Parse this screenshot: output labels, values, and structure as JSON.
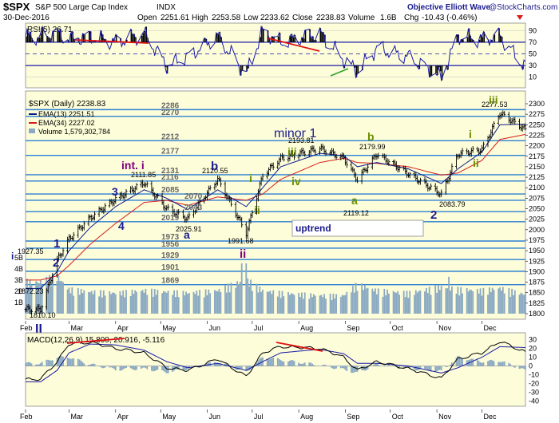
{
  "header": {
    "symbol": "$SPX",
    "name": "S&P 500 Large Cap Index",
    "exchange": "INDX",
    "date": "30-Dec-2016",
    "open_label": "Open",
    "open": "2251.61",
    "high_label": "High",
    "high": "2253.58",
    "low_label": "Low",
    "low": "2233.62",
    "close_label": "Close",
    "close": "2238.83",
    "volume_label": "Volume",
    "volume": "1.6B",
    "chg_label": "Chg",
    "chg": "-10.43 (-0.46%)",
    "watermark": "Objective Elliott Wave",
    "copyright": "@StockCharts.com"
  },
  "colors": {
    "panel_bg": "#fdfdd9",
    "price": "#000000",
    "ema13": "#0a1a8c",
    "ema34": "#d81b1b",
    "volume": "#8aa9c2",
    "hline": "#2b7fd4",
    "rsi": "#1a1aa8",
    "macd": "#000000",
    "signal": "#1a1aa8",
    "trendline": "#e01010",
    "label_blue": "#1a1a8c",
    "label_green": "#6b8e00",
    "label_purple": "#800080",
    "label_gray": "#666666"
  },
  "months": [
    "Feb",
    "Mar",
    "Apr",
    "May",
    "Jun",
    "Jul",
    "Aug",
    "Sep",
    "Oct",
    "Nov",
    "Dec"
  ],
  "rsi": {
    "label": "RSI(5) 26.71",
    "ticks": [
      "90",
      "70",
      "50",
      "30",
      "10"
    ]
  },
  "price_panel": {
    "legend_title": "$SPX (Daily) 2238.83",
    "ema13_label": "EMA(13) 2251.51",
    "ema34_label": "EMA(34) 2227.02",
    "volume_label": "Volume 1,579,302,784",
    "right_ticks": [
      "2300",
      "2275",
      "2250",
      "2225",
      "2200",
      "2175",
      "2150",
      "2125",
      "2100",
      "2075",
      "2050",
      "2025",
      "2000",
      "1975",
      "1950",
      "1925",
      "1900",
      "1875",
      "1850",
      "1825",
      "1800"
    ],
    "volume_ticks": [
      "5B",
      "4B",
      "3B",
      "2B",
      "1B"
    ],
    "chart_levels": [
      "2286",
      "2270",
      "2212",
      "2177",
      "2131",
      "2116",
      "2085",
      "2070",
      "2043",
      "2019",
      "1973",
      "1956",
      "1929",
      "1901",
      "1869"
    ],
    "price_labels": [
      "2277.53",
      "2193.81",
      "2179.99",
      "2119.12",
      "2083.79",
      "2120.55",
      "2111.85",
      "2025.91",
      "1991.68",
      "1927.35",
      "1872.23",
      "1810.10"
    ],
    "wave_labels": [
      "1",
      "2",
      "3",
      "4",
      "a",
      "b",
      "int. i",
      "minor 1",
      "iii",
      "iv",
      "b",
      "a",
      "2",
      "i",
      "ii",
      "iii",
      "i",
      "ii",
      "i",
      "ii",
      "II"
    ],
    "uptrend_box": "uptrend"
  },
  "macd": {
    "label": "MACD(12,26,9) 15.800, 20.916, -5.116",
    "ticks": [
      "30",
      "20",
      "10",
      "0",
      "-10",
      "-20",
      "-30",
      "-40"
    ]
  },
  "chart_data": {
    "type": "line",
    "title": "S&P 500 Large Cap Index (INDX) Daily, 30-Dec-2016",
    "x": [
      "2016-02-11",
      "2016-02-22",
      "2016-03-01",
      "2016-03-15",
      "2016-04-01",
      "2016-04-20",
      "2016-05-05",
      "2016-05-19",
      "2016-06-08",
      "2016-06-27",
      "2016-07-08",
      "2016-07-20",
      "2016-08-15",
      "2016-08-31",
      "2016-09-09",
      "2016-09-22",
      "2016-10-13",
      "2016-11-04",
      "2016-11-15",
      "2016-12-01",
      "2016-12-13",
      "2016-12-30"
    ],
    "series": [
      {
        "name": "$SPX (Daily) 2238.83",
        "values": [
          1810.1,
          1927.35,
          1978,
          2028,
          2073,
          2111.85,
          2050,
          2025.91,
          2120.55,
          1991.68,
          2130,
          2170,
          2193.81,
          2170,
          2119.12,
          2179.99,
          2133,
          2083.79,
          2180,
          2191,
          2277.53,
          2238.83
        ]
      },
      {
        "name": "EMA(13) 2251.51",
        "values": [
          1860,
          1900,
          1950,
          2005,
          2055,
          2095,
          2075,
          2048,
          2095,
          2055,
          2100,
          2150,
          2182,
          2176,
          2150,
          2160,
          2145,
          2110,
          2145,
          2185,
          2250,
          2251.51
        ]
      },
      {
        "name": "EMA(34) 2227.02",
        "values": [
          1880,
          1890,
          1915,
          1965,
          2015,
          2065,
          2070,
          2058,
          2078,
          2070,
          2085,
          2120,
          2160,
          2170,
          2160,
          2158,
          2150,
          2130,
          2135,
          2165,
          2215,
          2227.02
        ]
      }
    ],
    "volume_series": [
      2.6,
      3.1,
      2.0,
      1.8,
      1.7,
      1.9,
      1.8,
      1.7,
      1.9,
      2.8,
      1.9,
      1.7,
      1.5,
      1.5,
      2.4,
      1.9,
      1.7,
      2.2,
      2.0,
      1.9,
      2.1,
      1.58
    ],
    "rsi_series": [
      80,
      85,
      75,
      80,
      70,
      85,
      30,
      45,
      80,
      15,
      90,
      70,
      85,
      40,
      20,
      60,
      45,
      10,
      80,
      75,
      80,
      26.71
    ],
    "macd_series": [
      -15,
      5,
      25,
      27,
      20,
      15,
      -2,
      -5,
      8,
      -12,
      15,
      22,
      20,
      10,
      -5,
      5,
      -3,
      -14,
      8,
      15,
      28,
      15.8
    ],
    "signal_series": [
      -18,
      -5,
      15,
      25,
      24,
      18,
      5,
      -2,
      3,
      -5,
      5,
      15,
      19,
      14,
      3,
      3,
      0,
      -8,
      -2,
      10,
      22,
      20.916
    ],
    "xlabel": "",
    "ylabel": "",
    "ylim": [
      1790,
      2310
    ],
    "grid": true,
    "legend": "top-left"
  }
}
